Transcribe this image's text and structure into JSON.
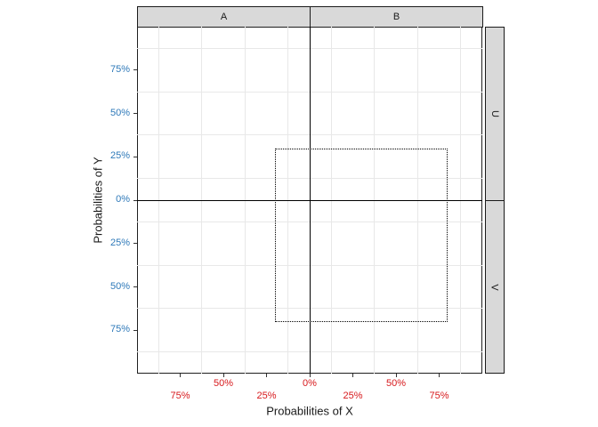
{
  "style": {
    "background": "#ffffff",
    "panel_border_color": "#1f1f1f",
    "grid_minor_color": "#e8e8e8",
    "reference_line_color": "#000000",
    "tick_color": "#333333",
    "strip_fill": "#d9d9d9",
    "strip_border": "#1a1a1a",
    "strip_text_color": "#1a1a1a",
    "x_tick_label_color": "#d7191c",
    "y_tick_label_color": "#2e79b9",
    "axis_title_color": "#1a1a1a",
    "annotation_line_color": "#000000"
  },
  "chart_data": {
    "type": "scatter",
    "title": "",
    "xlabel": "Probabilities of X",
    "ylabel": "Probabilities of Y",
    "xlim": [
      -100,
      100
    ],
    "ylim": [
      -100,
      100
    ],
    "x_ticks": {
      "values": [
        -75,
        -50,
        -25,
        0,
        25,
        50,
        75
      ],
      "labels": [
        "75%",
        "50%",
        "25%",
        "0%",
        "25%",
        "50%",
        "75%"
      ],
      "dodge_rows": [
        2,
        1,
        2,
        1,
        2,
        1,
        2
      ]
    },
    "y_ticks": {
      "values": [
        75,
        50,
        25,
        0,
        -25,
        -50,
        -75
      ],
      "labels": [
        "75%",
        "50%",
        "25%",
        "0%",
        "25%",
        "50%",
        "75%"
      ]
    },
    "grid": {
      "major_visible": false,
      "minor_breaks": [
        -87.5,
        -62.5,
        -37.5,
        -12.5,
        12.5,
        37.5,
        62.5,
        87.5
      ]
    },
    "facets": {
      "columns": [
        "A",
        "B"
      ],
      "rows": [
        "U",
        "V"
      ],
      "layout": "2x2 grid, shared continuous scales, zero panel spacing"
    },
    "series": [],
    "reference_lines": [
      {
        "axis": "v",
        "value": 0
      },
      {
        "axis": "h",
        "value": 0
      }
    ],
    "annotations": [
      {
        "shape": "rect",
        "x0": -20,
        "x1": 80,
        "y0": -70,
        "y1": 30,
        "line_style": "dotted"
      }
    ],
    "legend": "none"
  }
}
